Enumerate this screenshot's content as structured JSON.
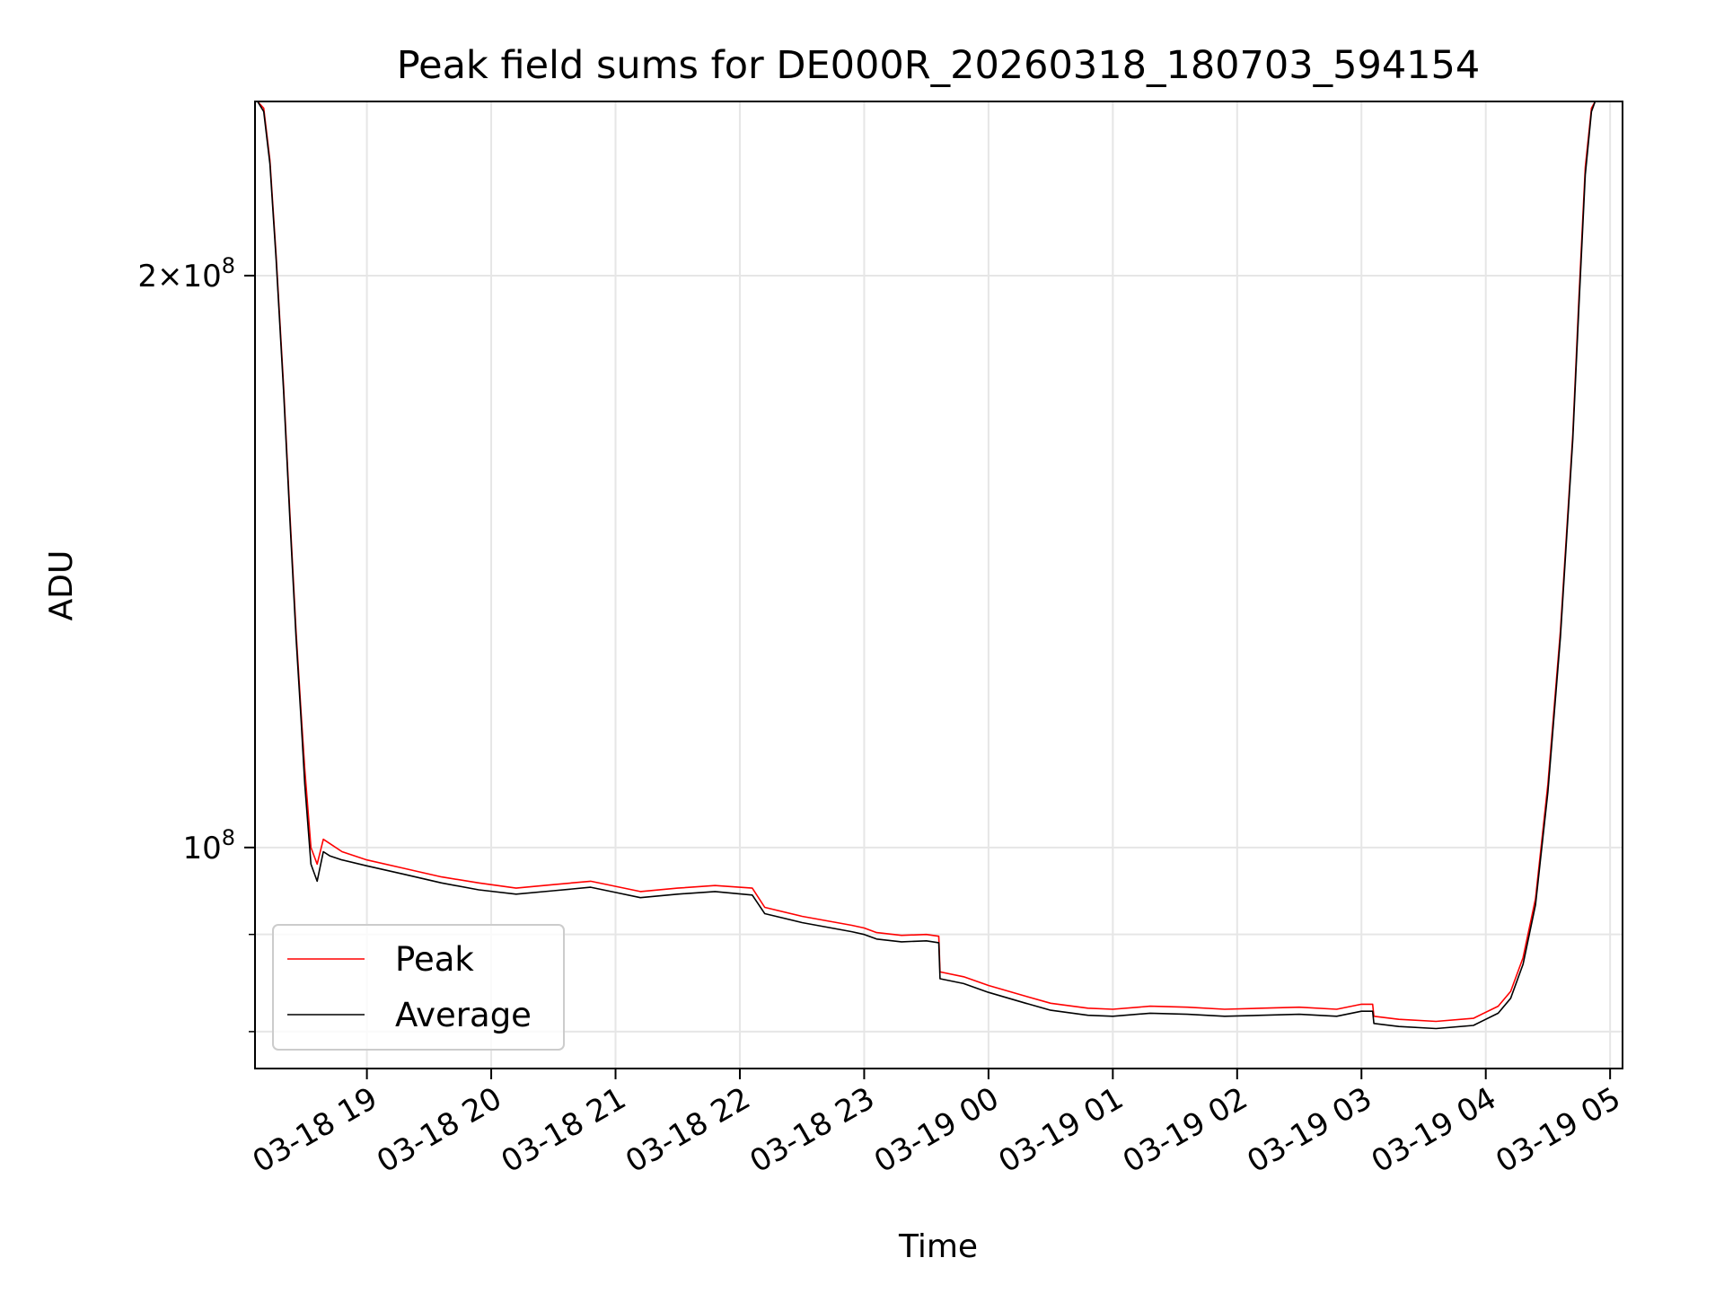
{
  "chart_data": {
    "type": "line",
    "title": "Peak field sums for DE000R_20260318_180703_594154",
    "xlabel": "Time",
    "ylabel": "ADU",
    "yscale": "log",
    "xlim": [
      18.1,
      29.1
    ],
    "ylim": [
      76500000,
      247000000
    ],
    "x_ticks": [
      {
        "value": 19,
        "label": "03-18 19"
      },
      {
        "value": 20,
        "label": "03-18 20"
      },
      {
        "value": 21,
        "label": "03-18 21"
      },
      {
        "value": 22,
        "label": "03-18 22"
      },
      {
        "value": 23,
        "label": "03-18 23"
      },
      {
        "value": 24,
        "label": "03-19 00"
      },
      {
        "value": 25,
        "label": "03-19 01"
      },
      {
        "value": 26,
        "label": "03-19 02"
      },
      {
        "value": 27,
        "label": "03-19 03"
      },
      {
        "value": 28,
        "label": "03-19 04"
      },
      {
        "value": 29,
        "label": "03-19 05"
      }
    ],
    "y_major_ticks": [
      {
        "value": 100000000,
        "base": "10",
        "exp": "8"
      },
      {
        "value": 200000000,
        "base": "2×10",
        "exp": "8"
      }
    ],
    "y_minor_ticks": [
      80000000,
      90000000
    ],
    "grid": true,
    "legend_position": "lower-left",
    "series": [
      {
        "name": "Peak",
        "color": "#ff0000",
        "x": [
          18.12,
          18.17,
          18.22,
          18.27,
          18.33,
          18.38,
          18.43,
          18.47,
          18.5,
          18.55,
          18.6,
          18.65,
          18.7,
          18.8,
          19.0,
          19.3,
          19.6,
          19.9,
          20.2,
          20.5,
          20.8,
          21.0,
          21.2,
          21.5,
          21.8,
          22.1,
          22.2,
          22.5,
          22.9,
          23.0,
          23.1,
          23.3,
          23.5,
          23.6,
          23.61,
          23.8,
          24.0,
          24.3,
          24.5,
          24.8,
          25.0,
          25.3,
          25.6,
          25.9,
          26.2,
          26.5,
          26.8,
          27.0,
          27.09,
          27.1,
          27.3,
          27.6,
          27.9,
          28.1,
          28.2,
          28.3,
          28.4,
          28.5,
          28.6,
          28.7,
          28.75,
          28.8,
          28.85,
          28.88,
          28.92
        ],
        "y": [
          247000000,
          245000000,
          230000000,
          205000000,
          175000000,
          150000000,
          130000000,
          118000000,
          110000000,
          100000000,
          98000000,
          101000000,
          100500000,
          99500000,
          98500000,
          97500000,
          96500000,
          95800000,
          95200000,
          95600000,
          96000000,
          95400000,
          94800000,
          95200000,
          95500000,
          95200000,
          93000000,
          92000000,
          91000000,
          90700000,
          90200000,
          89900000,
          90000000,
          89800000,
          86000000,
          85500000,
          84600000,
          83500000,
          82800000,
          82300000,
          82200000,
          82500000,
          82400000,
          82200000,
          82300000,
          82400000,
          82200000,
          82700000,
          82700000,
          81500000,
          81200000,
          81000000,
          81300000,
          82500000,
          84000000,
          87500000,
          94000000,
          108000000,
          130000000,
          165000000,
          195000000,
          228000000,
          245000000,
          247000000,
          247000000
        ]
      },
      {
        "name": "Average",
        "color": "#000000",
        "x": [
          18.12,
          18.17,
          18.22,
          18.27,
          18.33,
          18.38,
          18.43,
          18.47,
          18.5,
          18.55,
          18.6,
          18.65,
          18.7,
          18.8,
          19.0,
          19.3,
          19.6,
          19.9,
          20.2,
          20.5,
          20.8,
          21.0,
          21.2,
          21.5,
          21.8,
          22.1,
          22.2,
          22.5,
          22.9,
          23.0,
          23.1,
          23.3,
          23.5,
          23.6,
          23.61,
          23.8,
          24.0,
          24.3,
          24.5,
          24.8,
          25.0,
          25.3,
          25.6,
          25.9,
          26.2,
          26.5,
          26.8,
          27.0,
          27.09,
          27.1,
          27.3,
          27.6,
          27.9,
          28.1,
          28.2,
          28.3,
          28.4,
          28.5,
          28.6,
          28.7,
          28.75,
          28.8,
          28.85,
          28.88,
          28.92
        ],
        "y": [
          247000000,
          244000000,
          229000000,
          204000000,
          174000000,
          149000000,
          129000000,
          117000000,
          108000000,
          98000000,
          96000000,
          99500000,
          99000000,
          98500000,
          97800000,
          96800000,
          95800000,
          95000000,
          94500000,
          94900000,
          95300000,
          94700000,
          94100000,
          94500000,
          94800000,
          94400000,
          92300000,
          91300000,
          90300000,
          90000000,
          89500000,
          89200000,
          89300000,
          89100000,
          85300000,
          84800000,
          83900000,
          82800000,
          82100000,
          81600000,
          81500000,
          81800000,
          81700000,
          81500000,
          81600000,
          81700000,
          81500000,
          82000000,
          82000000,
          80800000,
          80500000,
          80300000,
          80600000,
          81800000,
          83300000,
          86800000,
          93300000,
          107000000,
          129000000,
          164000000,
          193000000,
          226000000,
          244000000,
          247000000,
          247000000
        ]
      }
    ]
  }
}
